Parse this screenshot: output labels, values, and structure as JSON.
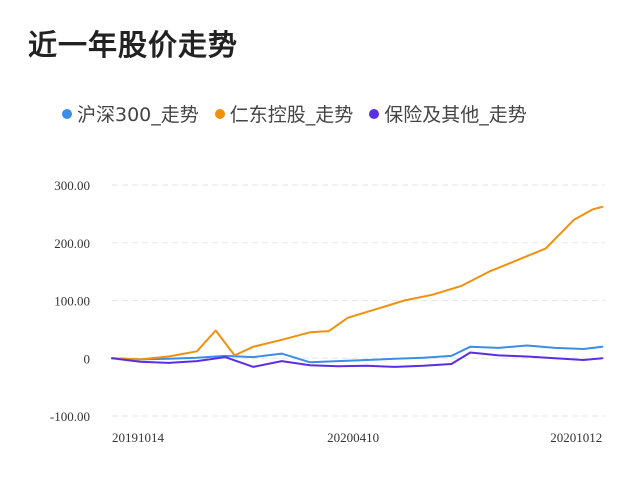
{
  "chart_data": {
    "type": "line",
    "title": "近一年股价走势",
    "xlabel": "",
    "ylabel": "",
    "x_ticks": [
      "20191014",
      "20200410",
      "20201012"
    ],
    "x_start": "20191014",
    "x_end": "20201014",
    "y_ticks": [
      "300.00",
      "200.00",
      "100.00",
      "0",
      "-100.00"
    ],
    "y_tick_values": [
      300,
      200,
      100,
      0,
      -100
    ],
    "ylim": [
      -100,
      300
    ],
    "grid": true,
    "legend_position": "top",
    "series": [
      {
        "name": "沪深300_走势",
        "color": "#3a8ee6",
        "x": [
          "20191014",
          "20191104",
          "20191125",
          "20191216",
          "20200106",
          "20200127",
          "20200217",
          "20200309",
          "20200330",
          "20200420",
          "20200511",
          "20200601",
          "20200622",
          "20200706",
          "20200727",
          "20200817",
          "20200907",
          "20200928",
          "20201012"
        ],
        "values": [
          0,
          -2,
          -1,
          1,
          4,
          2,
          8,
          -7,
          -5,
          -3,
          -1,
          1,
          4,
          20,
          18,
          22,
          18,
          16,
          20
        ]
      },
      {
        "name": "仁东控股_走势",
        "color": "#f0900d",
        "x": [
          "20191014",
          "20191104",
          "20191125",
          "20191216",
          "20191230",
          "20200113",
          "20200127",
          "20200217",
          "20200309",
          "20200323",
          "20200406",
          "20200427",
          "20200518",
          "20200608",
          "20200629",
          "20200720",
          "20200810",
          "20200831",
          "20200921",
          "20201005",
          "20201012"
        ],
        "values": [
          0,
          -2,
          3,
          12,
          48,
          5,
          20,
          32,
          45,
          47,
          70,
          85,
          100,
          110,
          125,
          150,
          170,
          190,
          240,
          258,
          262
        ]
      },
      {
        "name": "保险及其他_走势",
        "color": "#5b2ee6",
        "x": [
          "20191014",
          "20191104",
          "20191125",
          "20191216",
          "20200106",
          "20200127",
          "20200217",
          "20200309",
          "20200330",
          "20200420",
          "20200511",
          "20200601",
          "20200622",
          "20200706",
          "20200727",
          "20200817",
          "20200907",
          "20200928",
          "20201012"
        ],
        "values": [
          0,
          -6,
          -8,
          -5,
          2,
          -15,
          -5,
          -12,
          -14,
          -13,
          -15,
          -13,
          -10,
          10,
          5,
          3,
          0,
          -3,
          0
        ]
      }
    ]
  }
}
